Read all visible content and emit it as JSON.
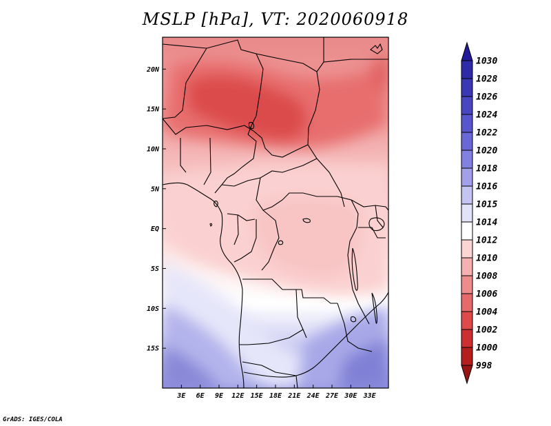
{
  "title": "MSLP [hPa], VT: 2020060918",
  "credit": "GrADS: IGES/COLA",
  "map": {
    "variable": "MSLP",
    "units": "hPa",
    "valid_time": "2020060918",
    "lon_range": [
      0,
      36
    ],
    "lat_range": [
      -20,
      24
    ],
    "x_ticks": [
      "3E",
      "6E",
      "9E",
      "12E",
      "15E",
      "18E",
      "21E",
      "24E",
      "27E",
      "30E",
      "33E"
    ],
    "y_ticks": [
      "20N",
      "15N",
      "10N",
      "5N",
      "EQ",
      "5S",
      "10S",
      "15S"
    ]
  },
  "colorbar": {
    "levels": [
      "1030",
      "1028",
      "1026",
      "1024",
      "1022",
      "1020",
      "1018",
      "1016",
      "1015",
      "1014",
      "1012",
      "1010",
      "1008",
      "1006",
      "1004",
      "1002",
      "1000",
      "998"
    ],
    "colors": [
      "#221c9a",
      "#2e2aa8",
      "#3a38b4",
      "#4846c0",
      "#5856cc",
      "#6a68d6",
      "#8280e0",
      "#a2a0ea",
      "#c4c4f2",
      "#e2e2f8",
      "#ffffff",
      "#fbd4d4",
      "#f5b0b0",
      "#ee8c8c",
      "#e66a6a",
      "#dc4a4a",
      "#cc3030",
      "#b41e1e",
      "#961414"
    ]
  }
}
